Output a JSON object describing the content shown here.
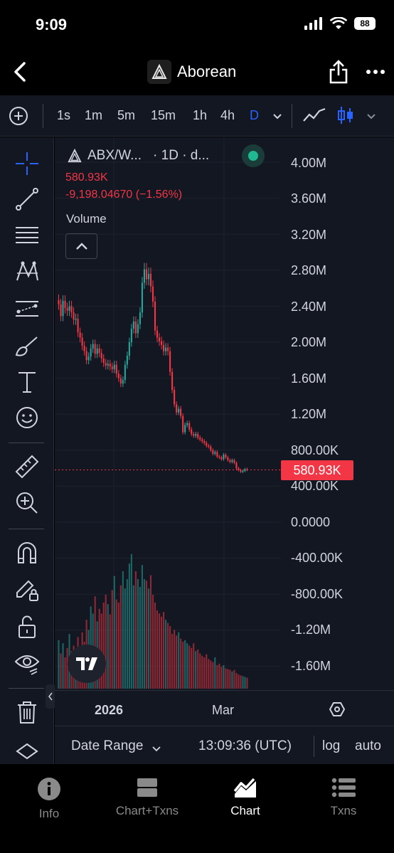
{
  "status": {
    "time": "9:09",
    "battery": "88"
  },
  "header": {
    "title": "Aborean"
  },
  "toolbar": {
    "intervals": [
      "1s",
      "1m",
      "5m",
      "15m",
      "1h",
      "4h",
      "D"
    ],
    "active_interval": "D",
    "accent_color": "#2962ff"
  },
  "chart": {
    "symbol": "ABX/W...",
    "interval_text": "· 1D · d...",
    "price": "580.93K",
    "change": "-9,198.04670 (−1.56%)",
    "volume_label": "Volume",
    "price_badge": "580.93K",
    "y_labels": [
      "4.00M",
      "3.60M",
      "3.20M",
      "2.80M",
      "2.40M",
      "2.00M",
      "1.60M",
      "1.20M",
      "800.00K",
      "400.00K",
      "0.0000",
      "-400.00K",
      "-800.00K",
      "-1.20M",
      "-1.60M"
    ],
    "time_labels": [
      "2026",
      "Mar"
    ],
    "up_color": "#26a69a",
    "down_color": "#f23645"
  },
  "chart_data": {
    "type": "candlestick",
    "ylim": [
      -1800000,
      4200000
    ],
    "x_tick_labels": [
      "2026",
      "Mar"
    ],
    "close": [
      2420000,
      2290000,
      2460000,
      2380000,
      2350000,
      2400000,
      2330000,
      2250000,
      2260000,
      2110000,
      2050000,
      1960000,
      1900000,
      1800000,
      1840000,
      1930000,
      1980000,
      1870000,
      1930000,
      1880000,
      1820000,
      1770000,
      1740000,
      1760000,
      1730000,
      1700000,
      1750000,
      1650000,
      1600000,
      1540000,
      1580000,
      1750000,
      1850000,
      2000000,
      2150000,
      2230000,
      2100000,
      2200000,
      2330000,
      2660000,
      2810000,
      2700000,
      2760000,
      2620000,
      2450000,
      2130000,
      2050000,
      2010000,
      1970000,
      1900000,
      1940000,
      1900000,
      1670000,
      1470000,
      1310000,
      1220000,
      1260000,
      1180000,
      1000000,
      1080000,
      1100000,
      1030000,
      980000,
      960000,
      980000,
      940000,
      920000,
      900000,
      880000,
      850000,
      840000,
      800000,
      760000,
      780000,
      730000,
      720000,
      700000,
      750000,
      720000,
      690000,
      670000,
      690000,
      660000,
      600000,
      580000,
      560000,
      570000,
      590000,
      580930
    ],
    "volume": [
      62,
      45,
      58,
      40,
      52,
      70,
      48,
      55,
      42,
      66,
      50,
      72,
      60,
      88,
      75,
      105,
      96,
      118,
      86,
      102,
      96,
      110,
      120,
      108,
      95,
      126,
      144,
      114,
      110,
      132,
      150,
      128,
      140,
      160,
      172,
      132,
      150,
      140,
      130,
      158,
      140,
      138,
      128,
      145,
      120,
      110,
      100,
      96,
      92,
      98,
      88,
      84,
      80,
      70,
      75,
      68,
      72,
      64,
      60,
      62,
      58,
      55,
      52,
      58,
      48,
      50,
      45,
      42,
      40,
      44,
      38,
      36,
      34,
      40,
      30,
      32,
      28,
      30,
      26,
      25,
      24,
      22,
      24,
      20,
      18,
      17,
      16,
      15,
      14
    ],
    "last": 580930
  },
  "bottom": {
    "date_range": "Date Range",
    "time": "13:09:36 (UTC)",
    "log": "log",
    "auto": "auto"
  },
  "nav": [
    {
      "label": "Info",
      "icon": "info-icon"
    },
    {
      "label": "Chart+Txns",
      "icon": "split-view-icon"
    },
    {
      "label": "Chart",
      "icon": "chart-icon"
    },
    {
      "label": "Txns",
      "icon": "list-icon"
    }
  ],
  "active_nav": "Chart"
}
